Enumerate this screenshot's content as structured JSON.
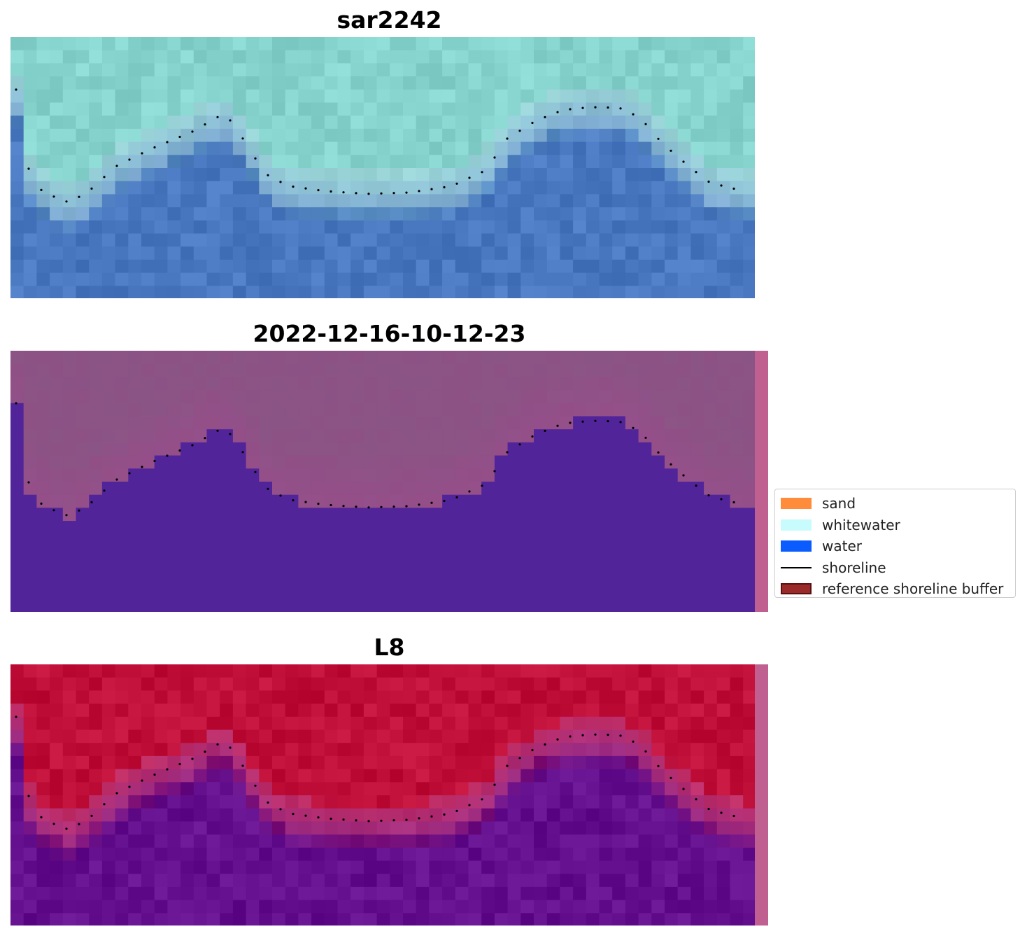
{
  "panels": [
    {
      "title": "sar2242",
      "image_description": "satellite RGB image of coast",
      "palette": "rgb"
    },
    {
      "title": "2022-12-16-10-12-23",
      "image_description": "classified image: sand and water",
      "palette": "class"
    },
    {
      "title": "L8",
      "image_description": "index image: land red, water purple",
      "palette": "index"
    }
  ],
  "legend": [
    {
      "label": "sand",
      "type": "patch",
      "color": "#ff8c3a"
    },
    {
      "label": "whitewater",
      "type": "patch",
      "color": "#c8fcfc"
    },
    {
      "label": "water",
      "type": "patch",
      "color": "#0a5cff"
    },
    {
      "label": "shoreline",
      "type": "line",
      "color": "#000000"
    },
    {
      "label": "reference shoreline buffer",
      "type": "patch",
      "color": "#9a2a2a",
      "edge": "#5a1010"
    }
  ],
  "colors": {
    "rgb_land": "#86d2cc",
    "rgb_water": "#4a78c0",
    "class_sand": "#8a5585",
    "class_water": "#52249a",
    "index_land": "#c0103a",
    "index_water": "#64108e",
    "buffer_strip": "#c06090"
  }
}
